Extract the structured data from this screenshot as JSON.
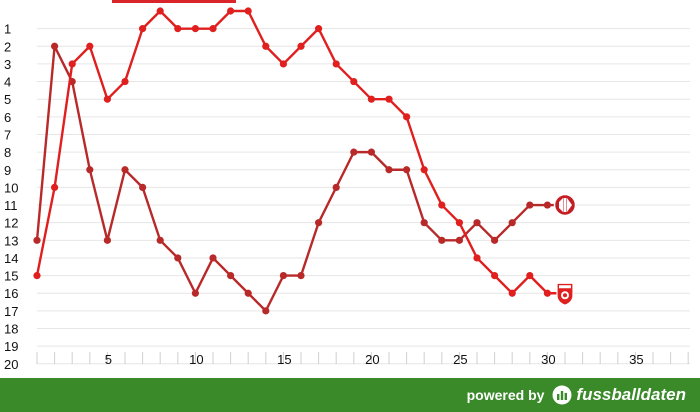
{
  "chart_data": {
    "type": "line",
    "title": "",
    "xlabel": "",
    "ylabel": "",
    "ylim": [
      1,
      20
    ],
    "y_inverted": true,
    "xlim": [
      0,
      38
    ],
    "y_ticks": [
      "1",
      "2",
      "3",
      "4",
      "5",
      "6",
      "7",
      "8",
      "9",
      "10",
      "11",
      "12",
      "13",
      "14",
      "15",
      "16",
      "17",
      "18",
      "19",
      "20"
    ],
    "x_ticks": [
      "5",
      "10",
      "15",
      "20",
      "25",
      "30",
      "35"
    ],
    "x_tick_values": [
      5,
      10,
      15,
      20,
      25,
      30,
      35
    ],
    "grid": true,
    "series": [
      {
        "x": [
          1,
          2,
          3,
          4,
          5,
          6,
          7,
          8,
          9,
          10,
          11,
          12,
          13,
          14,
          15,
          16,
          17,
          18,
          19,
          20,
          21,
          22,
          23,
          24,
          25,
          26,
          27,
          28,
          29,
          30,
          31
        ],
        "values": [
          13,
          2,
          4,
          9,
          13,
          9,
          10,
          13,
          14,
          16,
          14,
          15,
          16,
          17,
          15,
          15,
          12,
          10,
          8,
          8,
          9,
          9,
          12,
          13,
          13,
          12,
          13,
          12,
          11,
          11,
          11
        ],
        "color": "#b82a2a",
        "marker": "1fck-crest-icon"
      },
      {
        "x": [
          1,
          2,
          3,
          4,
          5,
          6,
          7,
          8,
          9,
          10,
          11,
          12,
          13,
          14,
          15,
          16,
          17,
          18,
          19,
          20,
          21,
          22,
          23,
          24,
          25,
          26,
          27,
          28,
          29,
          30,
          31
        ],
        "values": [
          15,
          10,
          3,
          2,
          5,
          4,
          1,
          0,
          1,
          1,
          1,
          0,
          0,
          2,
          3,
          2,
          1,
          3,
          4,
          5,
          5,
          6,
          9,
          11,
          12,
          14,
          15,
          16,
          15,
          16,
          16
        ],
        "color": "#e01f1f",
        "marker": "hfc-crest-icon"
      }
    ]
  },
  "footer": {
    "powered_by": "powered by",
    "brand": "fussballdaten",
    "background_color": "#3a8a2a"
  },
  "top_tab_color": "#d9252a"
}
